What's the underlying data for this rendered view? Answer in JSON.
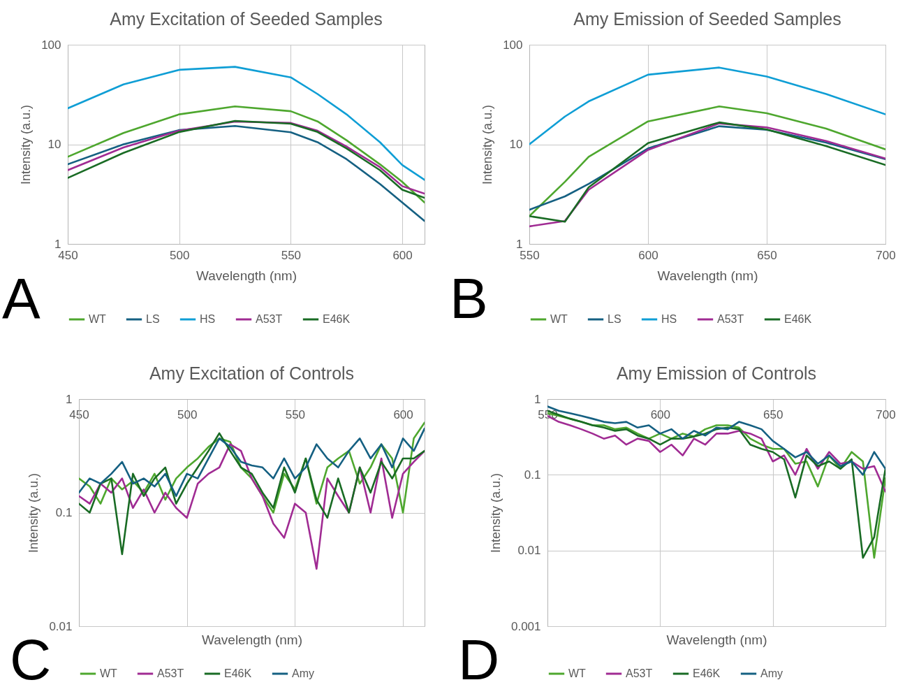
{
  "chart_data": [
    {
      "type": "line",
      "title": "Amy Excitation of Seeded Samples",
      "xlabel": "Wavelength (nm)",
      "ylabel": "Intensity (a.u.)",
      "annotations": [
        "A"
      ],
      "x": [
        450,
        475,
        500,
        525,
        550,
        562,
        575,
        590,
        600,
        610
      ],
      "xlim": [
        450,
        610
      ],
      "xticks": [
        450,
        500,
        550,
        600
      ],
      "ylim": [
        1,
        100
      ],
      "yticks": [
        1,
        10,
        100
      ],
      "log": true,
      "grid": true,
      "legend": "bottom",
      "series": [
        {
          "name": "WT",
          "color": "#4ea72e",
          "values": [
            7.5,
            13,
            20,
            24,
            21.5,
            17,
            11,
            6.3,
            4.2,
            2.6
          ]
        },
        {
          "name": "LS",
          "color": "#156082",
          "values": [
            6.3,
            10,
            13.9,
            15.3,
            13.2,
            10.5,
            7.1,
            4,
            2.6,
            1.7
          ]
        },
        {
          "name": "HS",
          "color": "#0f9ed5",
          "values": [
            23,
            40,
            56,
            60,
            47,
            32,
            20,
            10.5,
            6.2,
            4.4
          ]
        },
        {
          "name": "A53T",
          "color": "#a02b93",
          "values": [
            5.5,
            9.3,
            13.7,
            16.9,
            16.4,
            13.7,
            9.5,
            5.9,
            3.8,
            3.2
          ]
        },
        {
          "name": "E46K",
          "color": "#196b24",
          "values": [
            4.6,
            8.2,
            13.3,
            17.2,
            16.1,
            13.3,
            9.1,
            5.5,
            3.5,
            2.9
          ]
        }
      ]
    },
    {
      "type": "line",
      "title": "Amy Emission of Seeded Samples",
      "xlabel": "Wavelength (nm)",
      "ylabel": "Intensity (a.u.)",
      "annotations": [
        "B"
      ],
      "x": [
        550,
        565,
        575,
        600,
        630,
        650,
        675,
        700
      ],
      "xlim": [
        550,
        700
      ],
      "xticks": [
        550,
        600,
        650,
        700
      ],
      "ylim": [
        1,
        100
      ],
      "yticks": [
        1,
        10,
        100
      ],
      "log": true,
      "grid": true,
      "legend": "bottom",
      "series": [
        {
          "name": "WT",
          "color": "#4ea72e",
          "values": [
            1.9,
            4.2,
            7.5,
            17,
            24,
            20.5,
            14.4,
            8.9
          ]
        },
        {
          "name": "LS",
          "color": "#156082",
          "values": [
            2.2,
            3,
            4,
            9.1,
            15.2,
            14,
            10.4,
            7.1
          ]
        },
        {
          "name": "HS",
          "color": "#0f9ed5",
          "values": [
            10,
            19,
            27,
            50,
            59,
            48,
            32,
            20
          ]
        },
        {
          "name": "A53T",
          "color": "#a02b93",
          "values": [
            1.5,
            1.7,
            3.5,
            8.8,
            16.2,
            14.8,
            10.8,
            7.2
          ]
        },
        {
          "name": "E46K",
          "color": "#196b24",
          "values": [
            1.9,
            1.67,
            3.7,
            10.3,
            16.6,
            14.1,
            9.6,
            6.2
          ]
        }
      ]
    },
    {
      "type": "line",
      "title": "Amy Excitation of Controls",
      "xlabel": "Wavelength (nm)",
      "ylabel": "Intensity (a.u.)",
      "annotations": [
        "C"
      ],
      "x": [
        450,
        455,
        460,
        465,
        470,
        475,
        480,
        485,
        490,
        495,
        500,
        505,
        510,
        515,
        520,
        525,
        530,
        535,
        540,
        545,
        550,
        555,
        560,
        565,
        570,
        575,
        580,
        585,
        590,
        595,
        600,
        605,
        610
      ],
      "xlim": [
        450,
        610
      ],
      "xticks": [
        450,
        500,
        550,
        600
      ],
      "ylim": [
        0.01,
        1
      ],
      "yticks": [
        0.01,
        0.1,
        1
      ],
      "log": true,
      "grid": true,
      "legend": "bottom",
      "series": [
        {
          "name": "WT",
          "color": "#4ea72e",
          "values": [
            0.2,
            0.17,
            0.12,
            0.2,
            0.16,
            0.19,
            0.15,
            0.22,
            0.13,
            0.2,
            0.25,
            0.3,
            0.38,
            0.45,
            0.42,
            0.25,
            0.2,
            0.14,
            0.1,
            0.22,
            0.16,
            0.3,
            0.12,
            0.25,
            0.3,
            0.35,
            0.18,
            0.25,
            0.4,
            0.3,
            0.1,
            0.45,
            0.62
          ]
        },
        {
          "name": "A53T",
          "color": "#a02b93",
          "values": [
            0.14,
            0.12,
            0.18,
            0.15,
            0.2,
            0.11,
            0.16,
            0.1,
            0.15,
            0.11,
            0.09,
            0.18,
            0.22,
            0.25,
            0.4,
            0.35,
            0.2,
            0.14,
            0.08,
            0.06,
            0.12,
            0.1,
            0.032,
            0.2,
            0.14,
            0.1,
            0.25,
            0.1,
            0.3,
            0.09,
            0.22,
            0.28,
            0.35
          ]
        },
        {
          "name": "E46K",
          "color": "#196b24",
          "values": [
            0.12,
            0.1,
            0.18,
            0.2,
            0.043,
            0.22,
            0.14,
            0.2,
            0.25,
            0.12,
            0.18,
            0.25,
            0.35,
            0.5,
            0.35,
            0.25,
            0.22,
            0.15,
            0.11,
            0.25,
            0.15,
            0.3,
            0.13,
            0.09,
            0.2,
            0.1,
            0.25,
            0.15,
            0.28,
            0.2,
            0.3,
            0.3,
            0.35
          ]
        },
        {
          "name": "Amy",
          "color": "#156082",
          "values": [
            0.15,
            0.2,
            0.18,
            0.22,
            0.28,
            0.18,
            0.2,
            0.17,
            0.22,
            0.14,
            0.22,
            0.2,
            0.3,
            0.45,
            0.38,
            0.28,
            0.26,
            0.25,
            0.2,
            0.3,
            0.2,
            0.25,
            0.4,
            0.3,
            0.25,
            0.35,
            0.45,
            0.3,
            0.4,
            0.25,
            0.45,
            0.35,
            0.55
          ]
        }
      ]
    },
    {
      "type": "line",
      "title": "Amy Emission of Controls",
      "xlabel": "Wavelength (nm)",
      "ylabel": "Intensity (a.u.)",
      "annotations": [
        "D"
      ],
      "x": [
        550,
        555,
        560,
        565,
        570,
        575,
        580,
        585,
        590,
        595,
        600,
        605,
        610,
        615,
        620,
        625,
        630,
        635,
        640,
        645,
        650,
        655,
        660,
        665,
        670,
        675,
        680,
        685,
        690,
        695,
        700
      ],
      "xlim": [
        550,
        700
      ],
      "xticks": [
        550,
        600,
        650,
        700
      ],
      "ylim": [
        0.001,
        1
      ],
      "yticks": [
        0.001,
        0.01,
        0.1,
        1
      ],
      "log": true,
      "grid": true,
      "legend": "bottom",
      "series": [
        {
          "name": "WT",
          "color": "#4ea72e",
          "values": [
            0.65,
            0.6,
            0.55,
            0.5,
            0.45,
            0.45,
            0.4,
            0.42,
            0.35,
            0.3,
            0.35,
            0.3,
            0.35,
            0.32,
            0.4,
            0.45,
            0.45,
            0.42,
            0.3,
            0.25,
            0.22,
            0.22,
            0.14,
            0.15,
            0.07,
            0.18,
            0.12,
            0.2,
            0.15,
            0.008,
            0.09
          ]
        },
        {
          "name": "A53T",
          "color": "#a02b93",
          "values": [
            0.6,
            0.5,
            0.45,
            0.4,
            0.35,
            0.3,
            0.33,
            0.25,
            0.3,
            0.28,
            0.2,
            0.25,
            0.18,
            0.3,
            0.25,
            0.35,
            0.35,
            0.38,
            0.35,
            0.3,
            0.15,
            0.18,
            0.1,
            0.22,
            0.12,
            0.2,
            0.14,
            0.15,
            0.12,
            0.13,
            0.06
          ]
        },
        {
          "name": "E46K",
          "color": "#196b24",
          "values": [
            0.7,
            0.62,
            0.55,
            0.5,
            0.45,
            0.42,
            0.38,
            0.4,
            0.33,
            0.3,
            0.25,
            0.3,
            0.3,
            0.32,
            0.35,
            0.4,
            0.42,
            0.4,
            0.25,
            0.22,
            0.2,
            0.16,
            0.05,
            0.18,
            0.13,
            0.15,
            0.12,
            0.16,
            0.008,
            0.015,
            0.12
          ]
        },
        {
          "name": "Amy",
          "color": "#156082",
          "values": [
            0.8,
            0.7,
            0.65,
            0.6,
            0.55,
            0.5,
            0.48,
            0.5,
            0.42,
            0.45,
            0.35,
            0.4,
            0.3,
            0.38,
            0.33,
            0.42,
            0.4,
            0.5,
            0.45,
            0.4,
            0.28,
            0.22,
            0.17,
            0.2,
            0.14,
            0.18,
            0.13,
            0.15,
            0.1,
            0.2,
            0.12
          ]
        }
      ]
    }
  ]
}
